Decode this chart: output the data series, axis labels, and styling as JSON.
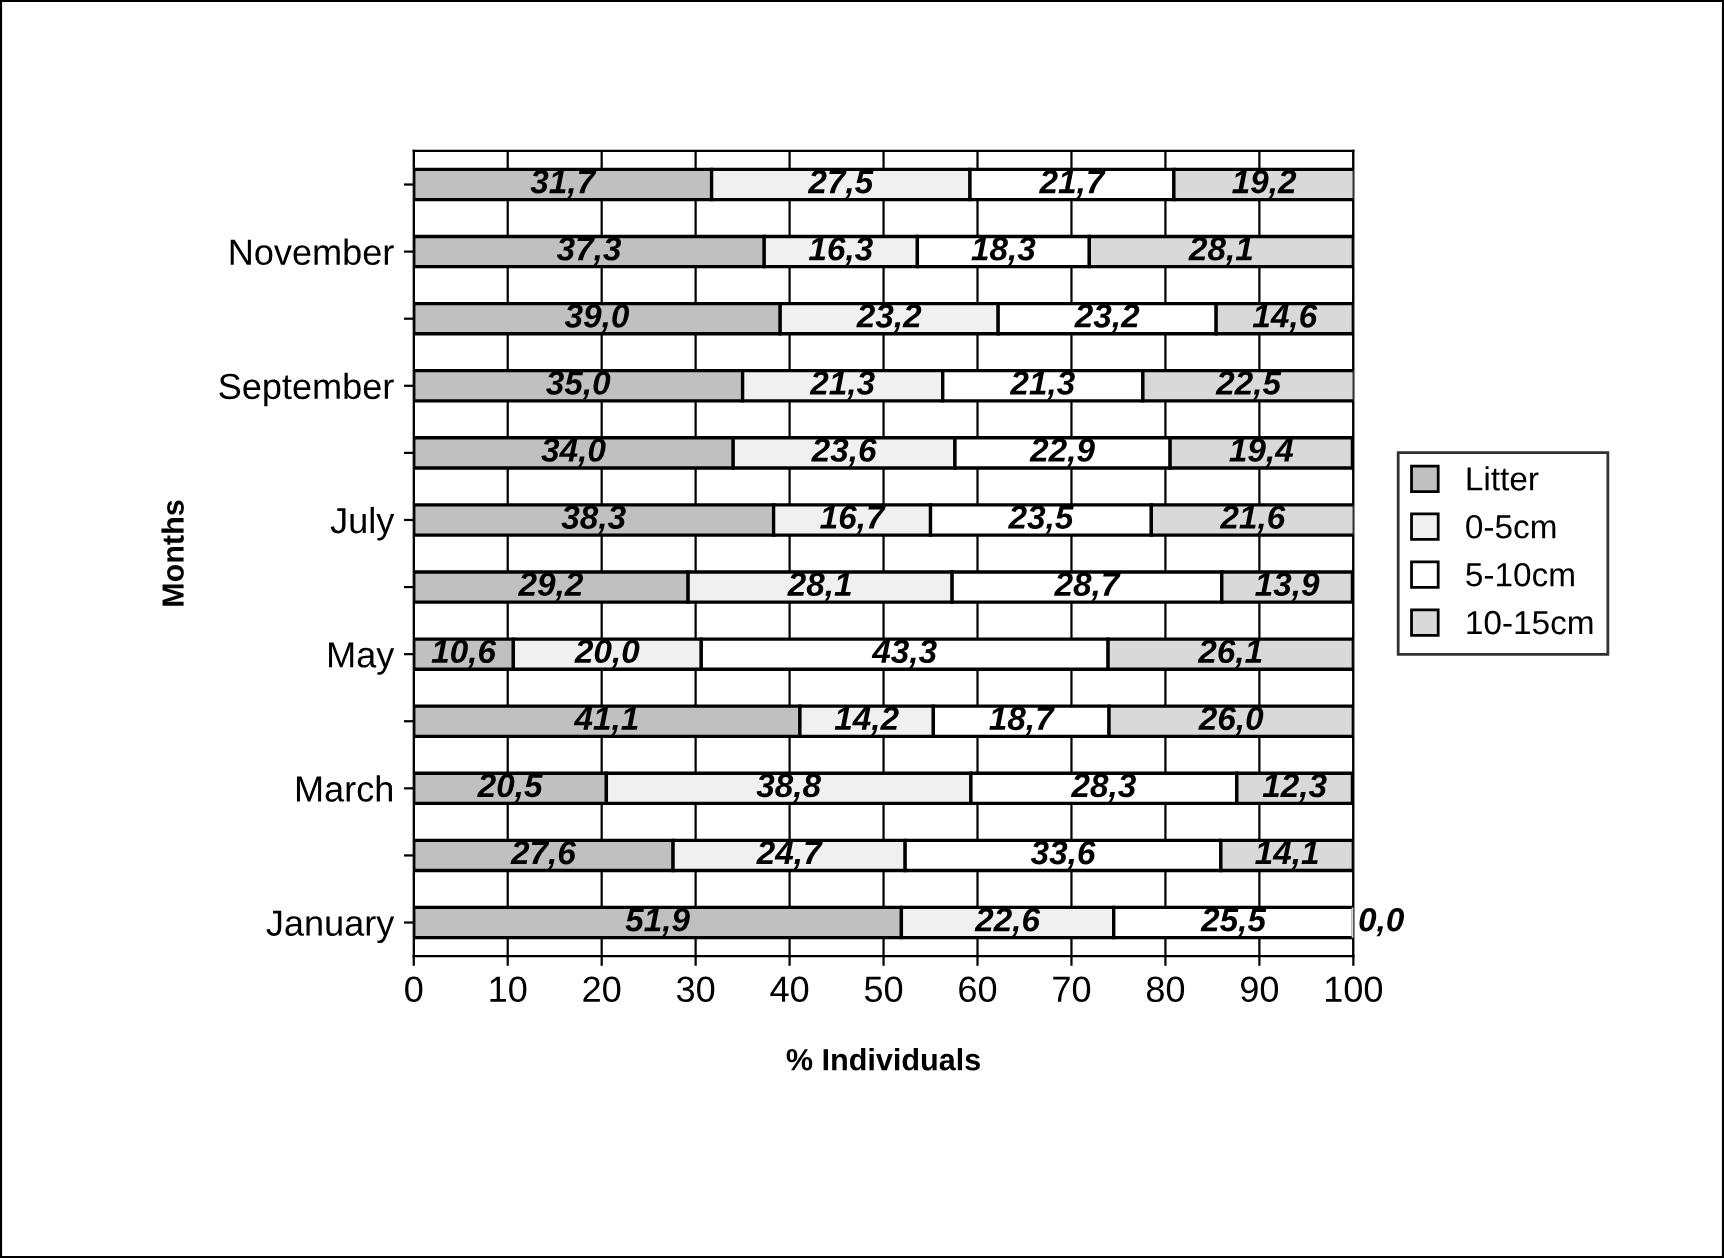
{
  "chart_data": {
    "type": "bar",
    "orientation": "horizontal",
    "stacked": true,
    "xlabel": "% Individuals",
    "ylabel": "Months",
    "categories": [
      null,
      "November",
      null,
      "September",
      null,
      "July",
      null,
      "May",
      null,
      "March",
      null,
      "January"
    ],
    "series": [
      {
        "name": "Litter",
        "color": "#c0c0c0",
        "values": [
          31.7,
          37.3,
          39.0,
          35.0,
          34.0,
          38.3,
          29.2,
          10.6,
          41.1,
          20.5,
          27.6,
          51.9
        ],
        "value_labels": [
          "31,7",
          "37,3",
          "39,0",
          "35,0",
          "34,0",
          "38,3",
          "29,2",
          "10,6",
          "41,1",
          "20,5",
          "27,6",
          "51,9"
        ]
      },
      {
        "name": "0-5cm",
        "color": "#f0f0f0",
        "values": [
          27.5,
          16.3,
          23.2,
          21.3,
          23.6,
          16.7,
          28.1,
          20.0,
          14.2,
          38.8,
          24.7,
          22.6
        ],
        "value_labels": [
          "27,5",
          "16,3",
          "23,2",
          "21,3",
          "23,6",
          "16,7",
          "28,1",
          "20,0",
          "14,2",
          "38,8",
          "24,7",
          "22,6"
        ]
      },
      {
        "name": "5-10cm",
        "color": "#ffffff",
        "values": [
          21.7,
          18.3,
          23.2,
          21.3,
          22.9,
          23.5,
          28.7,
          43.3,
          18.7,
          28.3,
          33.6,
          25.5
        ],
        "value_labels": [
          "21,7",
          "18,3",
          "23,2",
          "21,3",
          "22,9",
          "23,5",
          "28,7",
          "43,3",
          "18,7",
          "28,3",
          "33,6",
          "25,5"
        ]
      },
      {
        "name": "10-15cm",
        "color": "#d9d9d9",
        "values": [
          19.2,
          28.1,
          14.6,
          22.5,
          19.4,
          21.6,
          13.9,
          26.1,
          26.0,
          12.3,
          14.1,
          0.0
        ],
        "value_labels": [
          "19,2",
          "28,1",
          "14,6",
          "22,5",
          "19,4",
          "21,6",
          "13,9",
          "26,1",
          "26,0",
          "12,3",
          "14,1",
          "0,0"
        ]
      }
    ],
    "xlim": [
      0,
      100
    ],
    "xticks": [
      0,
      10,
      20,
      30,
      40,
      50,
      60,
      70,
      80,
      90,
      100
    ],
    "grid": "x",
    "legend": "right"
  }
}
